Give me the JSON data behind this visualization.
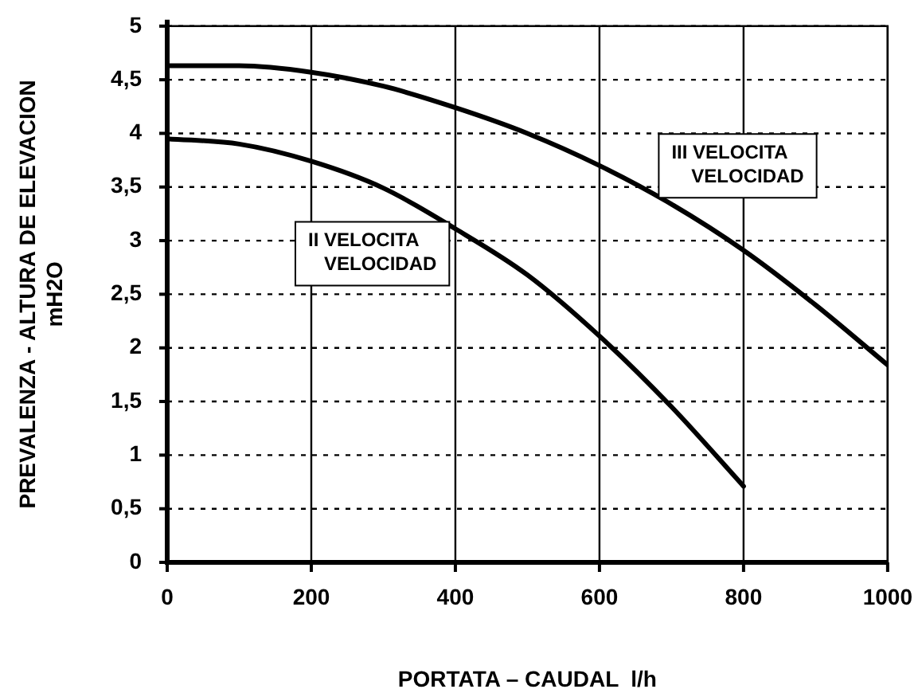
{
  "chart_data": {
    "type": "line",
    "xlabel": "PORTATA – CAUDAL  l/h",
    "ylabel": "PREVALENZA - ALTURA DE ELEVACION mH2O",
    "series": [
      {
        "name": "II VELOCITA VELOCIDAD",
        "color": "#000000",
        "x": [
          0,
          100,
          200,
          300,
          400,
          500,
          600,
          700,
          800
        ],
        "values": [
          3.95,
          3.9,
          3.74,
          3.49,
          3.11,
          2.68,
          2.11,
          1.45,
          0.71
        ]
      },
      {
        "name": "III VELOCITA VELOCIDAD",
        "color": "#000000",
        "x": [
          0,
          100,
          200,
          300,
          400,
          500,
          600,
          700,
          800,
          900,
          1000
        ],
        "values": [
          4.63,
          4.63,
          4.57,
          4.44,
          4.24,
          4.0,
          3.7,
          3.34,
          2.91,
          2.4,
          1.84
        ]
      }
    ],
    "xlim": [
      0,
      1000
    ],
    "xticks": [
      0,
      200,
      400,
      600,
      800,
      1000
    ],
    "ylim": [
      0,
      5
    ],
    "yticks": [
      0,
      {
        "value": 0.5,
        "label": "0,5"
      },
      1,
      {
        "value": 1.5,
        "label": "1,5"
      },
      2,
      {
        "value": 2.5,
        "label": "2,5"
      },
      3,
      {
        "value": 3.5,
        "label": "3,5"
      },
      4,
      {
        "value": 4.5,
        "label": "4,5"
      },
      5
    ],
    "grid": true,
    "legend": false,
    "marker": "none",
    "line_style": "solid"
  }
}
